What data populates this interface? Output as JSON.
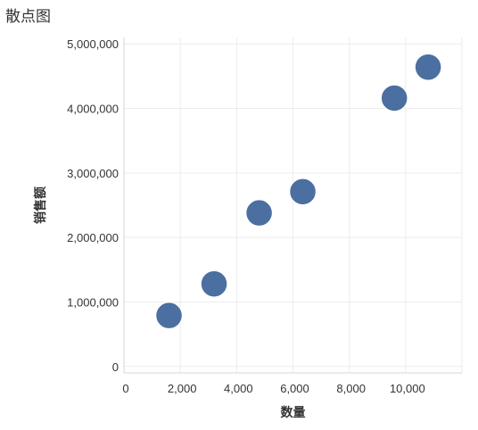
{
  "chart_data": {
    "type": "scatter",
    "title": "散点图",
    "xlabel": "数量",
    "ylabel": "销售额",
    "xlim": [
      0,
      12000
    ],
    "ylim": [
      -100000,
      5100000
    ],
    "x_ticks": [
      0,
      2000,
      4000,
      6000,
      8000,
      10000
    ],
    "x_tick_labels": [
      "0",
      "2,000",
      "4,000",
      "6,000",
      "8,000",
      "10,000"
    ],
    "y_ticks": [
      0,
      1000000,
      2000000,
      3000000,
      4000000,
      5000000
    ],
    "y_tick_labels": [
      "0",
      "1,000,000",
      "2,000,000",
      "3,000,000",
      "4,000,000",
      "5,000,000"
    ],
    "grid": true,
    "marker_color": "#4a6fa0",
    "points": [
      {
        "x": 1600,
        "y": 790000
      },
      {
        "x": 3200,
        "y": 1280000
      },
      {
        "x": 4800,
        "y": 2380000
      },
      {
        "x": 6350,
        "y": 2710000
      },
      {
        "x": 9600,
        "y": 4160000
      },
      {
        "x": 10800,
        "y": 4640000
      }
    ]
  }
}
